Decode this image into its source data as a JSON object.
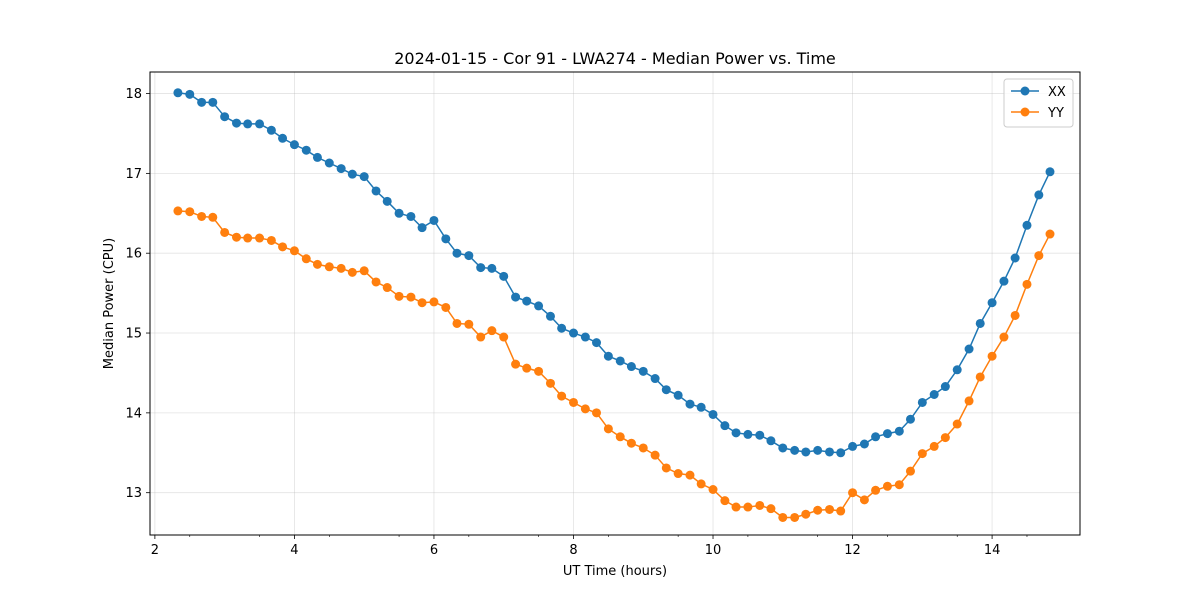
{
  "chart_data": {
    "type": "line",
    "title": "2024-01-15 - Cor 91 - LWA274 - Median Power vs. Time",
    "xlabel": "UT Time (hours)",
    "ylabel": "Median Power (CPU)",
    "xlim": [
      1.93,
      15.26
    ],
    "ylim": [
      12.47,
      18.27
    ],
    "xticks": [
      2,
      4,
      6,
      8,
      10,
      12,
      14
    ],
    "xtick_labels": [
      "2",
      "4",
      "6",
      "8",
      "10",
      "12",
      "14"
    ],
    "yticks": [
      13,
      14,
      15,
      16,
      17,
      18
    ],
    "ytick_labels": [
      "13",
      "14",
      "15",
      "16",
      "17",
      "18"
    ],
    "grid": true,
    "legend_position": "top-right",
    "x": [
      2.33,
      2.5,
      2.67,
      2.83,
      3.0,
      3.17,
      3.33,
      3.5,
      3.67,
      3.83,
      4.0,
      4.17,
      4.33,
      4.5,
      4.67,
      4.83,
      5.0,
      5.17,
      5.33,
      5.5,
      5.67,
      5.83,
      6.0,
      6.17,
      6.33,
      6.5,
      6.67,
      6.83,
      7.0,
      7.17,
      7.33,
      7.5,
      7.67,
      7.83,
      8.0,
      8.17,
      8.33,
      8.5,
      8.67,
      8.83,
      9.0,
      9.17,
      9.33,
      9.5,
      9.67,
      9.83,
      10.0,
      10.17,
      10.33,
      10.5,
      10.67,
      10.83,
      11.0,
      11.17,
      11.33,
      11.5,
      11.67,
      11.83,
      12.0,
      12.17,
      12.33,
      12.5,
      12.67,
      12.83,
      13.0,
      13.17,
      13.33,
      13.5,
      13.67,
      13.83,
      14.0,
      14.17,
      14.33,
      14.5,
      14.67,
      14.83
    ],
    "series": [
      {
        "name": "XX",
        "color": "#1f77b4",
        "values": [
          18.01,
          17.99,
          17.89,
          17.89,
          17.71,
          17.63,
          17.62,
          17.62,
          17.54,
          17.44,
          17.36,
          17.29,
          17.2,
          17.13,
          17.06,
          16.99,
          16.96,
          16.78,
          16.65,
          16.5,
          16.46,
          16.32,
          16.41,
          16.18,
          16.0,
          15.97,
          15.82,
          15.81,
          15.71,
          15.45,
          15.4,
          15.34,
          15.21,
          15.06,
          15.0,
          14.95,
          14.88,
          14.71,
          14.65,
          14.58,
          14.52,
          14.43,
          14.29,
          14.22,
          14.11,
          14.07,
          13.98,
          13.84,
          13.75,
          13.73,
          13.72,
          13.65,
          13.56,
          13.53,
          13.51,
          13.53,
          13.51,
          13.5,
          13.58,
          13.61,
          13.7,
          13.74,
          13.77,
          13.92,
          14.13,
          14.23,
          14.33,
          14.54,
          14.8,
          15.12,
          15.38,
          15.65,
          15.94,
          16.35,
          16.73,
          17.02
        ]
      },
      {
        "name": "YY",
        "color": "#ff7f0e",
        "values": [
          16.53,
          16.52,
          16.46,
          16.45,
          16.26,
          16.2,
          16.19,
          16.19,
          16.16,
          16.08,
          16.03,
          15.93,
          15.86,
          15.83,
          15.81,
          15.76,
          15.78,
          15.64,
          15.57,
          15.46,
          15.45,
          15.38,
          15.39,
          15.32,
          15.12,
          15.11,
          14.95,
          15.03,
          14.95,
          14.61,
          14.56,
          14.52,
          14.37,
          14.21,
          14.13,
          14.05,
          14.0,
          13.8,
          13.7,
          13.62,
          13.56,
          13.47,
          13.31,
          13.24,
          13.22,
          13.11,
          13.04,
          12.9,
          12.82,
          12.82,
          12.84,
          12.8,
          12.69,
          12.69,
          12.73,
          12.78,
          12.79,
          12.77,
          13.0,
          12.91,
          13.03,
          13.08,
          13.1,
          13.27,
          13.49,
          13.58,
          13.69,
          13.86,
          14.15,
          14.45,
          14.71,
          14.95,
          15.22,
          15.61,
          15.97,
          16.24
        ]
      }
    ]
  }
}
